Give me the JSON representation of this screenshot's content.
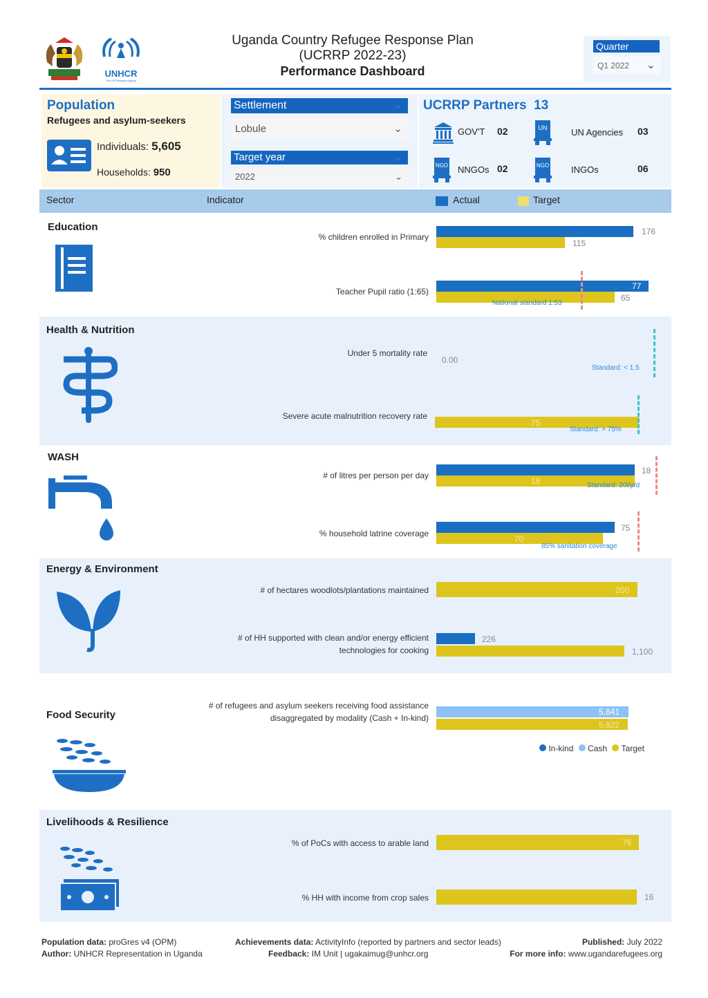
{
  "header": {
    "title_line1": "Uganda Country Refugee Response Plan",
    "title_line2": "(UCRRP 2022-23)",
    "title_line3": "Performance Dashboard",
    "unhcr_logo_text": "UNHCR",
    "unhcr_tagline": "The UN Refugee Agency"
  },
  "quarter": {
    "label": "Quarter",
    "value": "Q1 2022"
  },
  "population": {
    "title": "Population",
    "subtitle": "Refugees and asylum-seekers",
    "individuals_label": "Individuals:",
    "individuals_value": "5,605",
    "households_label": "Households:",
    "households_value": "950"
  },
  "settlement": {
    "label": "Settlement",
    "value": "Lobule"
  },
  "target_year": {
    "label": "Target year",
    "value": "2022"
  },
  "partners": {
    "title": "UCRRP Partners",
    "total": "13",
    "govt_label": "GOV'T",
    "govt_value": "02",
    "un_label": "UN Agencies",
    "un_value": "03",
    "nngo_label": "NNGOs",
    "nngo_value": "02",
    "ingo_label": "INGOs",
    "ingo_value": "06",
    "un_badge": "UN",
    "ngo_badge": "NGO"
  },
  "table_header": {
    "sector": "Sector",
    "indicator": "Indicator",
    "actual": "Actual",
    "target": "Target"
  },
  "sectors": {
    "education": {
      "title": "Education",
      "ind1": "% children enrolled in Primary",
      "ind1_actual": 176,
      "ind1_target": 115,
      "ind2": "Teacher Pupil ratio (1:65)",
      "ind2_actual": 77,
      "ind2_target": 65,
      "ind2_standard": "National standard 1:53"
    },
    "health": {
      "title": "Health & Nutrition",
      "ind1": "Under 5 mortality rate",
      "ind1_actual": "0.00",
      "ind1_standard": "Standard: < 1.5",
      "ind2": "Severe acute malnutrition recovery rate",
      "ind2_target": 75,
      "ind2_standard": "Standard: > 75%"
    },
    "wash": {
      "title": "WASH",
      "ind1": "# of litres per person per day",
      "ind1_actual": 18,
      "ind1_target": 18,
      "ind1_standard": "Standard: 20l/p/d",
      "ind2": "% household latrine coverage",
      "ind2_actual": 75,
      "ind2_target": 70,
      "ind2_standard": "85% sanitation coverage"
    },
    "energy": {
      "title": "Energy & Environment",
      "ind1": "# of hectares woodlots/plantations maintained",
      "ind1_target": 200,
      "ind2_line1": "# of HH supported with clean and/or energy efficient",
      "ind2_line2": "technologies for cooking",
      "ind2_actual": 226,
      "ind2_target": "1,100"
    },
    "food": {
      "title": "Food Security",
      "ind1_line1": "# of refugees and asylum seekers receiving food assistance",
      "ind1_line2": "disaggregated by modality (Cash + In-kind)",
      "ind1_cash": "5,841",
      "ind1_target": "5,822",
      "legend_inkind": "In-kind",
      "legend_cash": "Cash",
      "legend_target": "Target"
    },
    "livelihoods": {
      "title": "Livelihoods & Resilience",
      "ind1": "% of PoCs with access to arable land",
      "ind1_target": 76,
      "ind2": "% HH with income from crop sales",
      "ind2_target": 16
    }
  },
  "footer": {
    "pop_label": "Population data:",
    "pop_value": "proGres v4 (OPM)",
    "author_label": "Author:",
    "author_value": "UNHCR Representation in Uganda",
    "ach_label": "Achievements data:",
    "ach_value": "ActivityInfo (reported by partners and sector leads)",
    "feedback_label": "Feedback:",
    "feedback_value": "IM Unit | ugakaimug@unhcr.org",
    "pub_label": "Published:",
    "pub_value": "July 2022",
    "info_label": "For more info:",
    "info_value": "www.ugandarefugees.org"
  },
  "colors": {
    "actual": "#1a6fc2",
    "target": "#ddc51d",
    "cash": "#8ec1f5",
    "band": "#e8f1fb",
    "header_band": "#a7cbeb"
  }
}
